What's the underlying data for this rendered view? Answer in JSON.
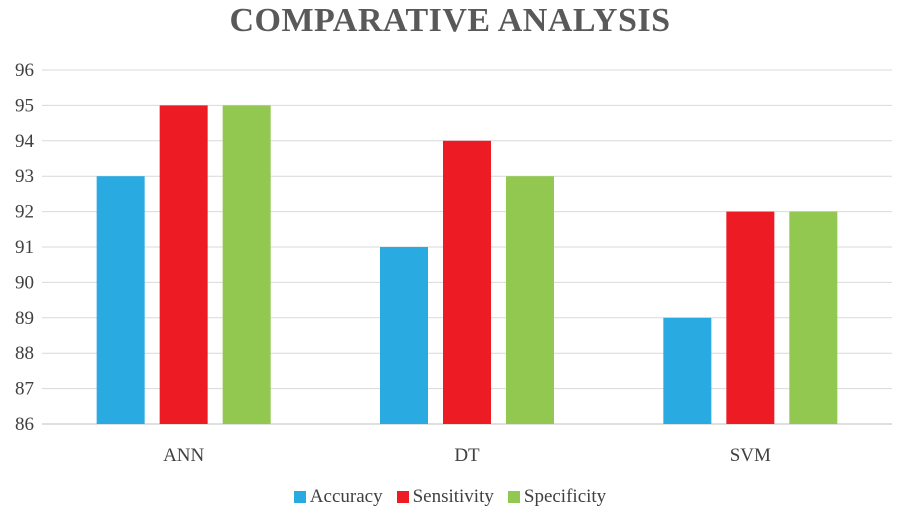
{
  "chart_data": {
    "type": "bar",
    "title": "COMPARATIVE ANALYSIS",
    "categories": [
      "ANN",
      "DT",
      "SVM"
    ],
    "series": [
      {
        "name": "Accuracy",
        "color": "#29ABE2",
        "values": [
          93,
          91,
          89
        ]
      },
      {
        "name": "Sensitivity",
        "color": "#ED1C24",
        "values": [
          95,
          94,
          92
        ]
      },
      {
        "name": "Specificity",
        "color": "#92C850",
        "values": [
          95,
          93,
          92
        ]
      }
    ],
    "ylim": [
      86,
      96
    ],
    "yticks": [
      86,
      87,
      88,
      89,
      90,
      91,
      92,
      93,
      94,
      95,
      96
    ],
    "grid": true,
    "legend_position": "bottom",
    "xlabel": "",
    "ylabel": ""
  }
}
